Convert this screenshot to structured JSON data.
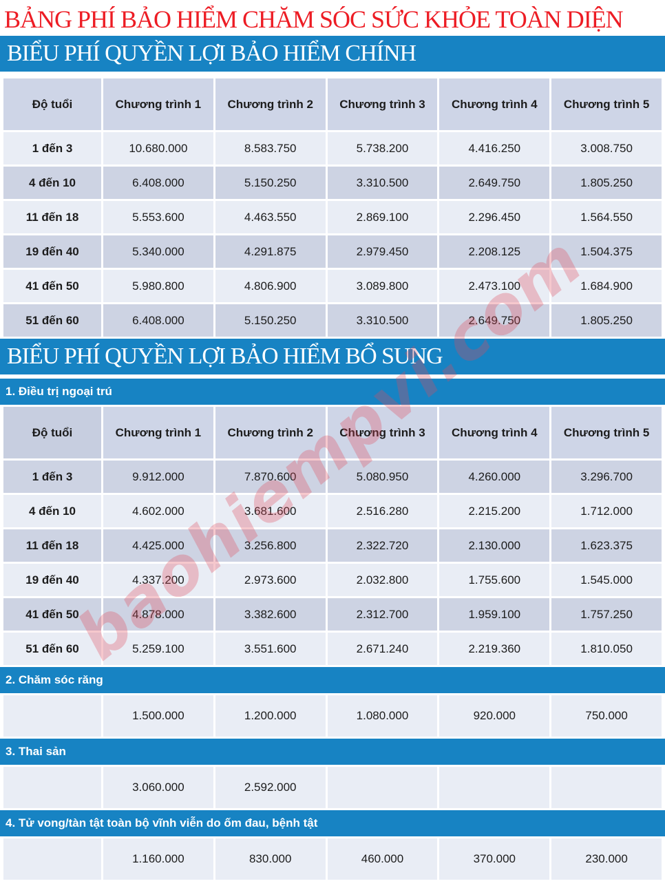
{
  "page_title": "BẢNG PHÍ BẢO HIỂM CHĂM SÓC SỨC KHỎE TOÀN DIỆN",
  "watermark": {
    "text": "baohiempvi.com"
  },
  "colors": {
    "title_red": "#ed1c24",
    "bar_blue": "#1783c3",
    "header_cell": "#ced5e7",
    "row_dark": "#cdd3e3",
    "row_light": "#e9edf5",
    "watermark_pink": "rgba(224,72,88,0.30)"
  },
  "main_table": {
    "section_title": "BIỂU PHÍ QUYỀN LỢI BẢO HIỂM CHÍNH",
    "columns": [
      "Độ tuổi",
      "Chương trình 1",
      "Chương trình 2",
      "Chương trình 3",
      "Chương trình 4",
      "Chương trình 5"
    ],
    "stripe_start": "light",
    "rows": [
      {
        "age": "1 đến 3",
        "values": [
          "10.680.000",
          "8.583.750",
          "5.738.200",
          "4.416.250",
          "3.008.750"
        ]
      },
      {
        "age": "4 đến 10",
        "values": [
          "6.408.000",
          "5.150.250",
          "3.310.500",
          "2.649.750",
          "1.805.250"
        ]
      },
      {
        "age": "11 đến 18",
        "values": [
          "5.553.600",
          "4.463.550",
          "2.869.100",
          "2.296.450",
          "1.564.550"
        ]
      },
      {
        "age": "19 đến 40",
        "values": [
          "5.340.000",
          "4.291.875",
          "2.979.450",
          "2.208.125",
          "1.504.375"
        ]
      },
      {
        "age": "41 đến 50",
        "values": [
          "5.980.800",
          "4.806.900",
          "3.089.800",
          "2.473.100",
          "1.684.900"
        ]
      },
      {
        "age": "51 đến 60",
        "values": [
          "6.408.000",
          "5.150.250",
          "3.310.500",
          "2.649.750",
          "1.805.250"
        ]
      }
    ]
  },
  "supplementary": {
    "section_title": "BIỂU PHÍ QUYỀN LỢI BẢO HIỂM BỔ SUNG",
    "subsections": [
      {
        "label": "1. Điều trị ngoại trú",
        "columns": [
          "Độ tuổi",
          "Chương trình 1",
          "Chương trình 2",
          "Chương trình 3",
          "Chương trình 4",
          "Chương trình 5"
        ],
        "stripe_start": "dark",
        "rows": [
          {
            "age": "1 đến 3",
            "values": [
              "9.912.000",
              "7.870.600",
              "5.080.950",
              "4.260.000",
              "3.296.700"
            ]
          },
          {
            "age": "4 đến 10",
            "values": [
              "4.602.000",
              "3.681.600",
              "2.516.280",
              "2.215.200",
              "1.712.000"
            ]
          },
          {
            "age": "11 đến 18",
            "values": [
              "4.425.000",
              "3.256.800",
              "2.322.720",
              "2.130.000",
              "1.623.375"
            ]
          },
          {
            "age": "19 đến 40",
            "values": [
              "4.337.200",
              "2.973.600",
              "2.032.800",
              "1.755.600",
              "1.545.000"
            ]
          },
          {
            "age": "41 đến 50",
            "values": [
              "4.878.000",
              "3.382.600",
              "2.312.700",
              "1.959.100",
              "1.757.250"
            ]
          },
          {
            "age": "51 đến 60",
            "values": [
              "5.259.100",
              "3.551.600",
              "2.671.240",
              "2.219.360",
              "1.810.050"
            ]
          }
        ]
      },
      {
        "label": "2. Chăm sóc răng",
        "stripe_start": "light",
        "tall": true,
        "rows": [
          {
            "age": "",
            "values": [
              "1.500.000",
              "1.200.000",
              "1.080.000",
              "920.000",
              "750.000"
            ]
          }
        ]
      },
      {
        "label": "3. Thai sản",
        "stripe_start": "light",
        "tall": true,
        "rows": [
          {
            "age": "",
            "values": [
              "3.060.000",
              "2.592.000",
              "",
              "",
              ""
            ]
          }
        ]
      },
      {
        "label": "4. Tử vong/tàn tật toàn bộ vĩnh viễn do ốm đau, bệnh tật",
        "stripe_start": "light",
        "tall": true,
        "rows": [
          {
            "age": "",
            "values": [
              "1.160.000",
              "830.000",
              "460.000",
              "370.000",
              "230.000"
            ]
          }
        ]
      }
    ]
  }
}
